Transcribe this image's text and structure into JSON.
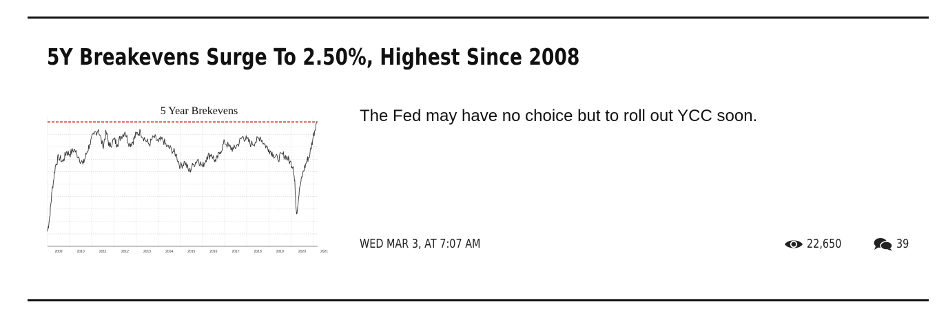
{
  "article": {
    "title": "5Y Breakevens Surge To 2.50%, Highest Since 2008",
    "summary": "The Fed may have no choice but to roll out YCC soon.",
    "date": "WED MAR 3, AT 7:07 AM",
    "views": "22,650",
    "comments": "39",
    "icons": {
      "views": "eye-icon",
      "comments": "comments-icon"
    }
  },
  "colors": {
    "text": "#111111",
    "rule": "#111111",
    "meta": "#222222",
    "chart_line": "#333333",
    "chart_reference": "#d33a3a",
    "chart_grid": "#dddddd"
  },
  "chart_data": {
    "type": "line",
    "title": "5 Year Brekevens",
    "xlabel": "",
    "ylabel": "",
    "x_ticks": [
      "2009",
      "2010",
      "2011",
      "2012",
      "2013",
      "2014",
      "2015",
      "2016",
      "2017",
      "2018",
      "2019",
      "2020",
      "2021"
    ],
    "xlim": [
      2009,
      2021.2
    ],
    "ylim": [
      0.0,
      2.6
    ],
    "grid": true,
    "reference_line": 2.5,
    "series": [
      {
        "x": [
          2009.0,
          2009.1,
          2009.2,
          2009.35,
          2009.5,
          2009.7,
          2009.85,
          2010.0,
          2010.2,
          2010.4,
          2010.6,
          2010.75,
          2010.9,
          2011.1,
          2011.3,
          2011.5,
          2011.65,
          2011.8,
          2012.0,
          2012.15,
          2012.3,
          2012.5,
          2012.7,
          2012.85,
          2013.0,
          2013.2,
          2013.4,
          2013.6,
          2013.8,
          2014.0,
          2014.2,
          2014.4,
          2014.6,
          2014.8,
          2015.0,
          2015.2,
          2015.4,
          2015.6,
          2015.8,
          2016.0,
          2016.2,
          2016.4,
          2016.6,
          2016.8,
          2017.0,
          2017.2,
          2017.4,
          2017.6,
          2017.8,
          2018.0,
          2018.2,
          2018.4,
          2018.6,
          2018.8,
          2019.0,
          2019.2,
          2019.4,
          2019.6,
          2019.8,
          2019.95,
          2020.1,
          2020.18,
          2020.25,
          2020.4,
          2020.55,
          2020.7,
          2020.85,
          2021.0,
          2021.15
        ],
        "y": [
          0.3,
          0.6,
          1.1,
          1.6,
          1.8,
          1.7,
          1.9,
          1.85,
          1.95,
          1.8,
          1.65,
          1.85,
          2.05,
          2.25,
          2.35,
          2.0,
          2.3,
          2.0,
          2.15,
          2.05,
          2.2,
          2.3,
          2.05,
          2.1,
          2.25,
          2.3,
          2.15,
          2.05,
          2.2,
          2.1,
          2.15,
          2.0,
          1.95,
          1.85,
          1.6,
          1.7,
          1.5,
          1.65,
          1.75,
          1.6,
          1.8,
          1.85,
          1.7,
          1.9,
          2.1,
          2.0,
          1.95,
          2.05,
          2.2,
          2.15,
          2.05,
          2.1,
          2.2,
          2.05,
          1.95,
          1.85,
          1.75,
          1.85,
          1.8,
          1.7,
          1.6,
          1.2,
          0.65,
          1.2,
          1.5,
          1.7,
          1.85,
          2.2,
          2.5
        ]
      }
    ]
  }
}
